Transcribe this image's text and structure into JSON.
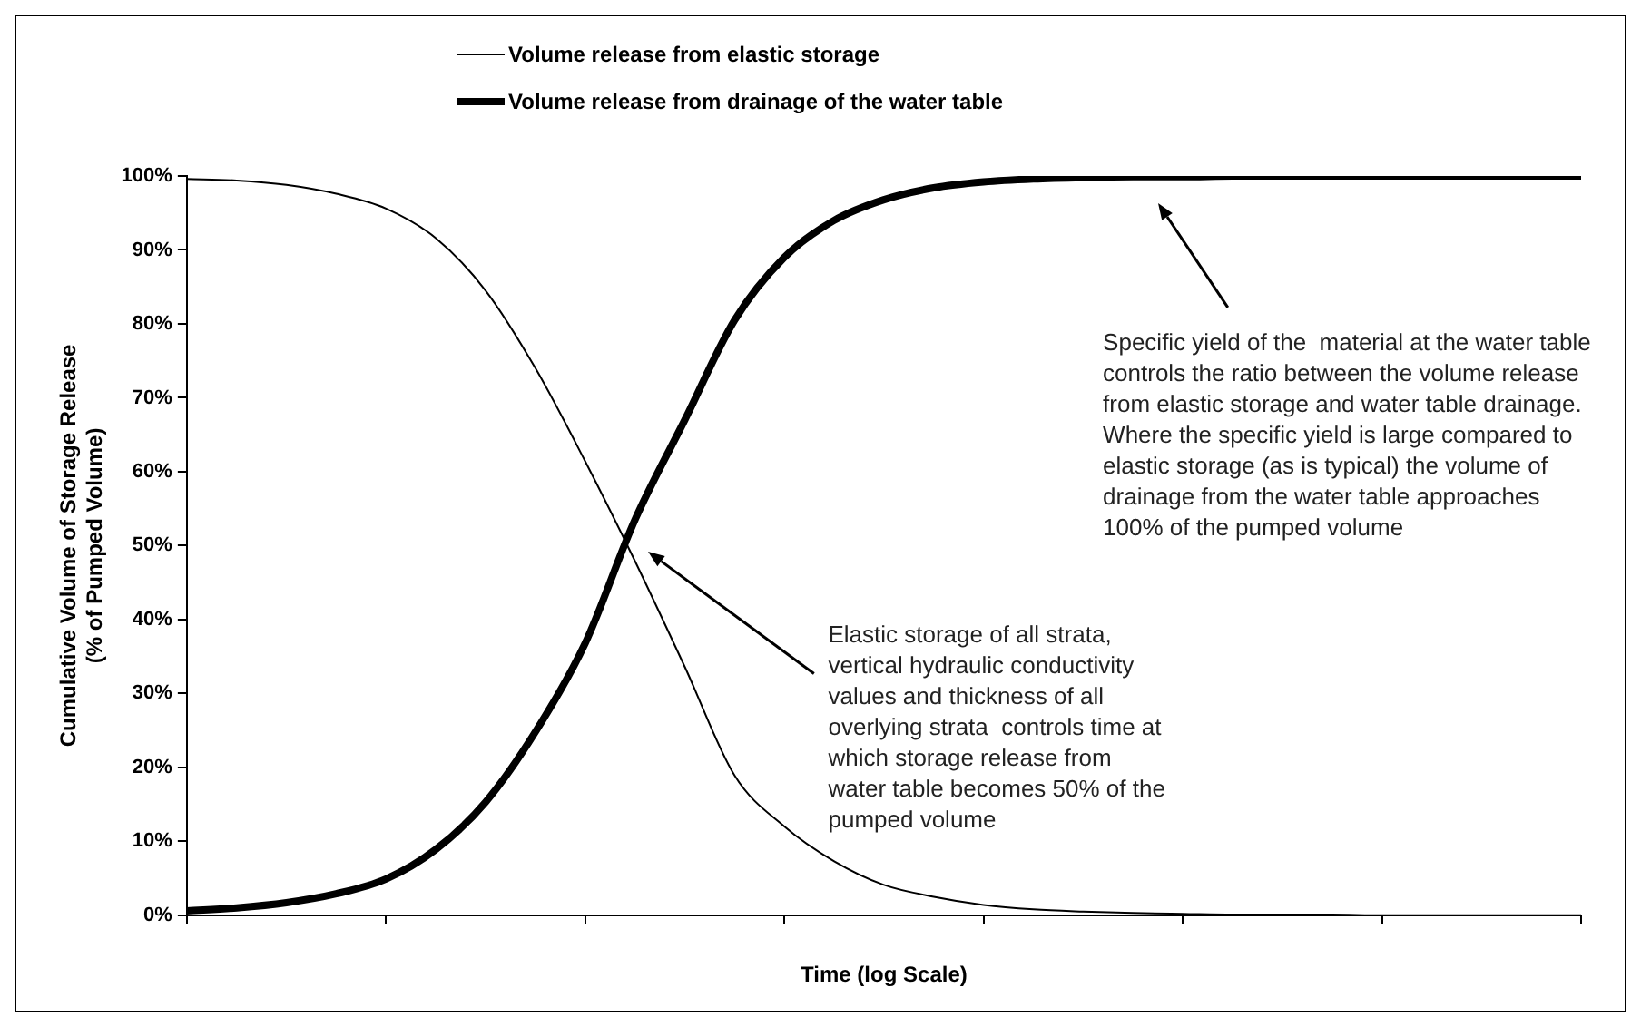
{
  "chart_data": {
    "type": "line",
    "xlabel": "Time (log Scale)",
    "ylabel": [
      "Cumulative Volume of Storage Release",
      "(% of Pumped Volume)"
    ],
    "categories": [
      null,
      null,
      null,
      null,
      null,
      null,
      null,
      null,
      null,
      null,
      null,
      null,
      null,
      null,
      null,
      null,
      null,
      null,
      null,
      null,
      null,
      null,
      null,
      null,
      null,
      null,
      null,
      null,
      null
    ],
    "series": [
      {
        "name": "Volume release from elastic storage",
        "color": "#000000",
        "values": [
          99.6,
          99.4,
          98.8,
          97.6,
          95.6,
          91.6,
          84.5,
          74,
          61.4,
          47.9,
          33.6,
          18.9,
          12,
          7.3,
          4.1,
          2.5,
          1.4,
          0.8,
          0.5,
          0.3,
          0.2,
          0.1,
          0.1,
          0.1,
          0,
          0,
          0,
          0,
          0
        ]
      },
      {
        "name": "Volume release from drainage of the water table",
        "color": "#000000",
        "values": [
          0.6,
          1,
          1.7,
          2.9,
          4.9,
          8.9,
          15.3,
          24.8,
          36.8,
          53.5,
          67,
          80.5,
          89,
          94,
          96.8,
          98.4,
          99.2,
          99.6,
          99.8,
          99.9,
          99.9,
          100,
          100,
          100,
          100,
          100,
          100,
          100,
          100
        ]
      }
    ],
    "ylim": [
      0,
      100
    ],
    "yticks": [
      {
        "value": 0,
        "label": "0%"
      },
      {
        "value": 10,
        "label": "10%"
      },
      {
        "value": 20,
        "label": "20%"
      },
      {
        "value": 30,
        "label": "30%"
      },
      {
        "value": 40,
        "label": "40%"
      },
      {
        "value": 50,
        "label": "50%"
      },
      {
        "value": 60,
        "label": "60%"
      },
      {
        "value": 70,
        "label": "70%"
      },
      {
        "value": 80,
        "label": "80%"
      },
      {
        "value": 90,
        "label": "90%"
      },
      {
        "value": 100,
        "label": "100%"
      }
    ],
    "grid": false,
    "legend": "top left",
    "marker": "none",
    "line_style": "solid",
    "annotations": [
      "Elastic storage of all strata, vertical hydraulic conductivity values and thickness of all overlying strata  controls time at which storage release from water table becomes 50% of the pumped volume",
      "Specific yield of the  material at the water table controls the ratio between the volume release from elastic storage and water table drainage. Where the specific yield is large compared to elastic storage (as is typical) the volume of drainage from the water table approaches 100% of the pumped volume"
    ]
  }
}
